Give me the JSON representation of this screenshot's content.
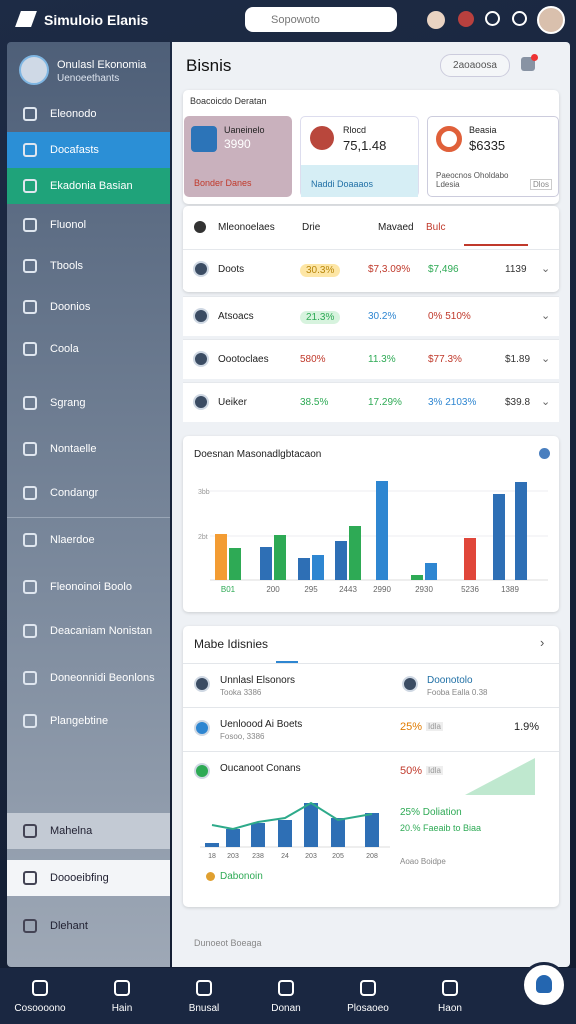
{
  "app": {
    "title": "Simuloio Elanis",
    "search_placeholder": "Sopowoto"
  },
  "sidebar": {
    "user_name": "Onulasl Ekonomia",
    "user_subtitle": "Uenoeethants",
    "items": [
      "Eleonodo",
      "Docafasts",
      "Ekadonia Basian",
      "Fluonol",
      "Tbools",
      "Doonios",
      "Coola",
      "Sgrang",
      "Nontaelle",
      "Condangr",
      "Nlaerdoe",
      "Fleonoinoi Boolo",
      "Deacaniam Nonistan",
      "Doneonnidi Beonlons",
      "Plangebtine",
      "Mahelna",
      "Doooeibfing",
      "Dlehant"
    ]
  },
  "main": {
    "title": "Bisnis",
    "button": "2aoaoosa",
    "section": "Boacoicdo Deratan",
    "cards": [
      {
        "label": "Uaneinelo",
        "value": "3990",
        "footer": "Bonder Danes"
      },
      {
        "label": "Rlocd",
        "value": "75,1.48",
        "footer": "Naddi Doaaaos"
      },
      {
        "label": "Beasia",
        "value": "$6335",
        "footer": "Paeocnos Oholdabo Ldesia",
        "badge": "Dlos"
      }
    ],
    "table": {
      "headers": [
        "Mleonoelaes",
        "Drie",
        "Mavaed",
        "Bulc"
      ],
      "rows": [
        [
          "Doots",
          "30.3%",
          "$7,3.09%",
          "$7,496",
          "1139"
        ],
        [
          "Atsoacs",
          "21.3%",
          "30.2%",
          "0% 510%",
          ""
        ],
        [
          "Oootoclaes",
          "580%",
          "11.3%",
          "$77.3%",
          "$1.89"
        ],
        [
          "Ueiker",
          "38.5%",
          "17.29%",
          "3% 2103%",
          "$39.8"
        ]
      ]
    },
    "chart": {
      "title": "Doesnan Masonadlgbtacaon",
      "ylim": [
        0,
        110
      ],
      "yticks": [
        {
          "value": 89,
          "label": "3bb"
        },
        {
          "value": 44,
          "label": "2bt"
        }
      ],
      "categories": [
        "B01",
        "200",
        "295",
        "2443",
        "2990",
        "2930",
        "5236",
        "1389"
      ],
      "groups": [
        {
          "values": [
            46,
            32
          ],
          "colors": [
            "#f39c33",
            "#2eaa55"
          ]
        },
        {
          "values": [
            33,
            45
          ],
          "colors": [
            "#2e6fb5",
            "#2eaa55"
          ]
        },
        {
          "values": [
            22,
            25
          ],
          "colors": [
            "#2e6fb5",
            "#2e86d1"
          ]
        },
        {
          "values": [
            39,
            54
          ],
          "colors": [
            "#2e6fb5",
            "#2eaa55"
          ]
        },
        {
          "values": [
            99
          ],
          "colors": [
            "#2e86d1"
          ]
        },
        {
          "values": [
            5,
            17
          ],
          "colors": [
            "#2eaa55",
            "#2e86d1"
          ]
        },
        {
          "values": [
            42
          ],
          "colors": [
            "#e0463a"
          ]
        },
        {
          "values": [
            86,
            98
          ],
          "colors": [
            "#2e6fb5",
            "#2e6fb5"
          ]
        }
      ]
    },
    "list": {
      "title": "Mabe Idisnies",
      "rows": [
        {
          "name": "Unnlasl Elsonors",
          "sub": "Tooka 3386",
          "right_name": "Doonotolo",
          "right_sub": "Fooba Ealla 0.38"
        },
        {
          "name": "Uenloood Ai Boets",
          "sub": "Fosoo, 3386",
          "pct": "25%",
          "tag": "Idla",
          "right_value": "1.9%"
        },
        {
          "name": "Oucanoot Conans",
          "pct": "50%",
          "tag": "Idla"
        }
      ],
      "mini_chart": {
        "ylim": [
          0,
          50
        ],
        "categories": [
          "18",
          "203",
          "238",
          "24",
          "203",
          "205",
          "208"
        ],
        "bars": [
          4,
          18,
          24,
          27,
          44,
          29,
          34
        ],
        "line": [
          22,
          18,
          25,
          29,
          44,
          27,
          33
        ],
        "legend": "Dabonoin",
        "stat1": "25% Doliation",
        "stat2": "20.% Faeaib to Biaa",
        "axis_note": "Aoao Boidpe"
      }
    },
    "footer": "Dunoeot Boeaga"
  },
  "bottom_nav": [
    "Cosoooono",
    "Hain",
    "Bnusal",
    "Donan",
    "Plosaoeo",
    "Haon"
  ]
}
